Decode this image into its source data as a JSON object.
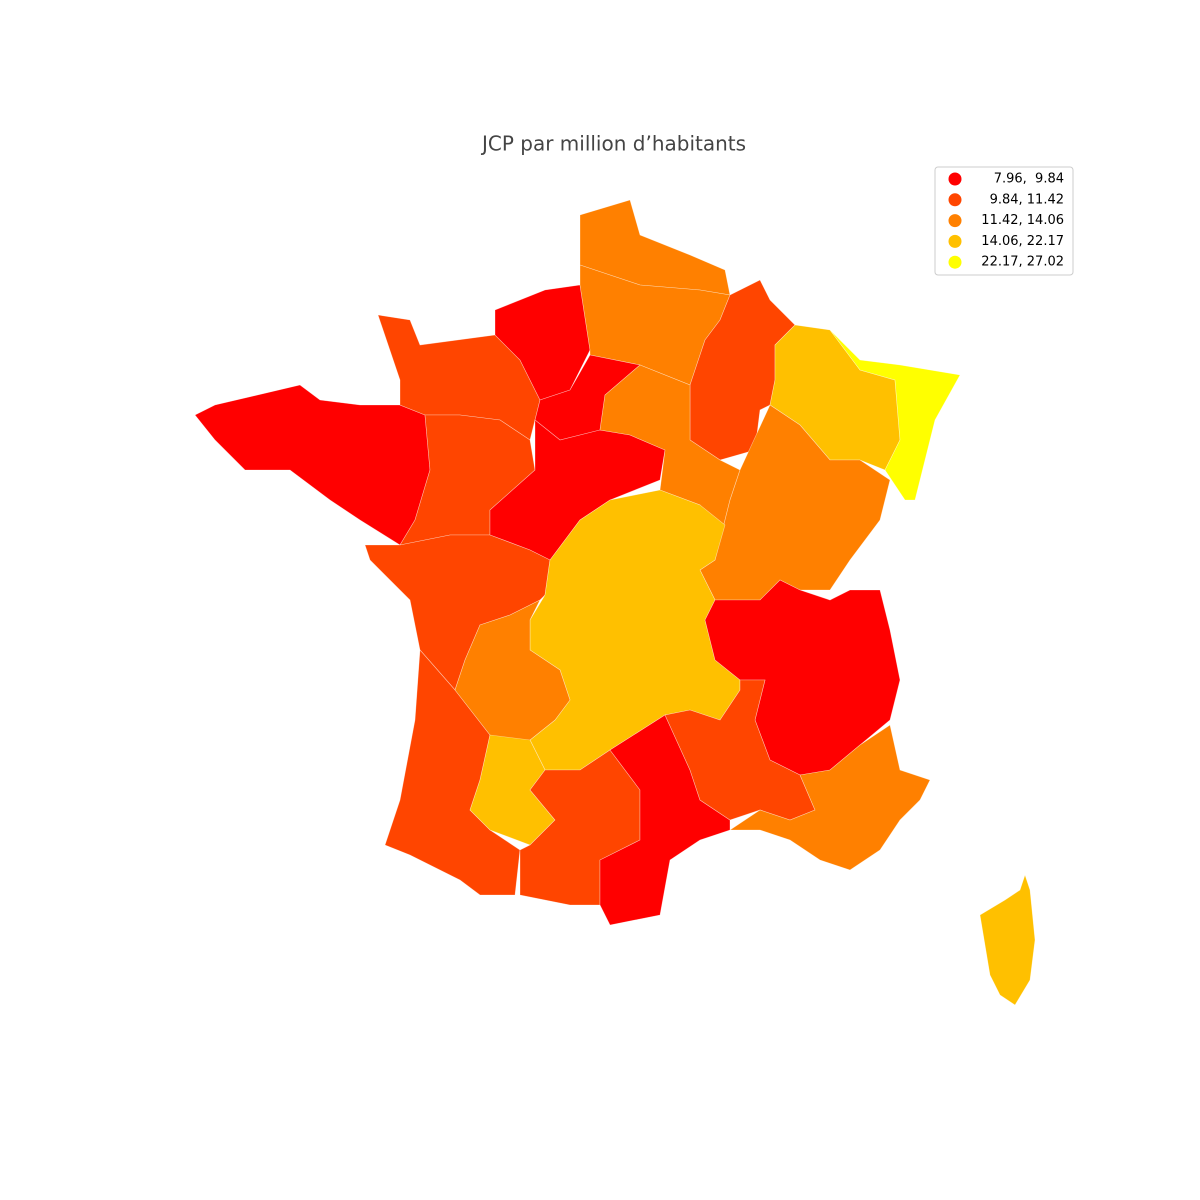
{
  "chart_data": {
    "type": "choropleth",
    "title": "JCP par million d’habitants",
    "legend": {
      "position": "upper right",
      "entries": [
        {
          "label": "7.96,  9.84",
          "color": "#ff0000"
        },
        {
          "label": "9.84, 11.42",
          "color": "#ff4500"
        },
        {
          "label": "11.42, 14.06",
          "color": "#ff8000"
        },
        {
          "label": "14.06, 22.17",
          "color": "#ffc000"
        },
        {
          "label": "22.17, 27.02",
          "color": "#ffff00"
        }
      ]
    }
  }
}
